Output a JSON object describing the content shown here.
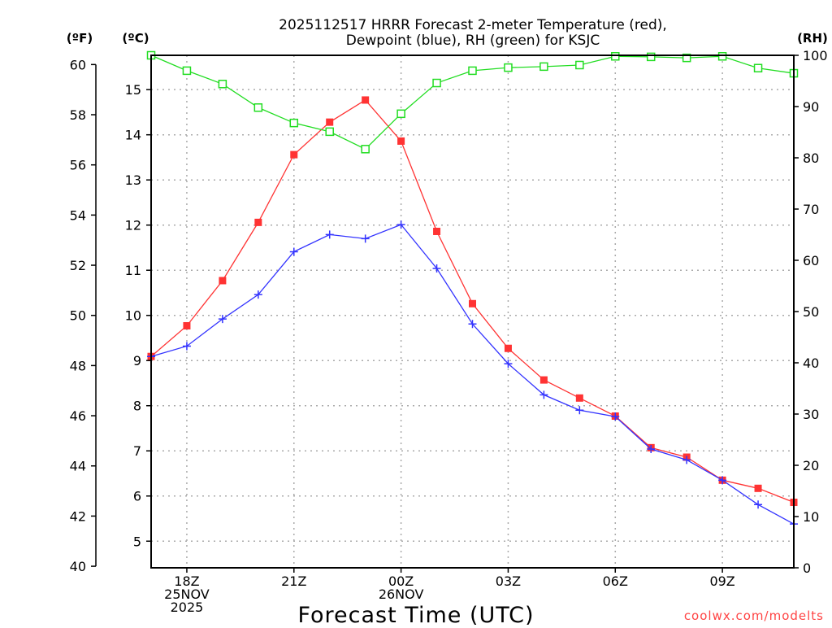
{
  "chart_data": {
    "type": "line",
    "title_line1": "2025112517 HRRR Forecast 2-meter Temperature (red),",
    "title_line2": "Dewpoint (blue), RH (green) for KSJC",
    "xlabel": "Forecast Time (UTC)",
    "left_axis_f_label": "(ºF)",
    "left_axis_c_label": "(ºC)",
    "right_axis_label": "(RH)",
    "credit": "coolwx.com/modelts",
    "x_hours": [
      "17Z",
      "18Z",
      "19Z",
      "20Z",
      "21Z",
      "22Z",
      "23Z",
      "00Z",
      "01Z",
      "02Z",
      "03Z",
      "04Z",
      "05Z",
      "06Z",
      "07Z",
      "08Z",
      "09Z",
      "10Z",
      "11Z"
    ],
    "x_ticks": [
      {
        "hour_index": 1,
        "lines": [
          "18Z",
          "25NOV",
          "2025"
        ]
      },
      {
        "hour_index": 4,
        "lines": [
          "21Z"
        ]
      },
      {
        "hour_index": 7,
        "lines": [
          "00Z",
          "26NOV"
        ]
      },
      {
        "hour_index": 10,
        "lines": [
          "03Z"
        ]
      },
      {
        "hour_index": 13,
        "lines": [
          "06Z"
        ]
      },
      {
        "hour_index": 16,
        "lines": [
          "09Z"
        ]
      }
    ],
    "celsius_range": [
      4.41,
      15.76
    ],
    "celsius_ticks": [
      "5",
      "6",
      "7",
      "8",
      "9",
      "10",
      "11",
      "12",
      "13",
      "14",
      "15"
    ],
    "fahrenheit_ticks": [
      "40",
      "42",
      "44",
      "46",
      "48",
      "50",
      "52",
      "54",
      "56",
      "58",
      "60"
    ],
    "rh_range": [
      0,
      100
    ],
    "rh_ticks": [
      "0",
      "10",
      "20",
      "30",
      "40",
      "50",
      "60",
      "70",
      "80",
      "90",
      "100"
    ],
    "grid": true,
    "series": [
      {
        "name": "Temperature (°C)",
        "color": "#ff3333",
        "marker": "filled-square",
        "axis": "celsius",
        "values": [
          9.09,
          9.77,
          10.77,
          12.06,
          13.56,
          14.28,
          14.77,
          13.86,
          11.86,
          10.26,
          9.27,
          8.57,
          8.17,
          7.77,
          7.07,
          6.86,
          6.35,
          6.17,
          5.86
        ]
      },
      {
        "name": "Dewpoint (°C)",
        "color": "#3333ff",
        "marker": "plus",
        "axis": "celsius",
        "values": [
          9.09,
          9.32,
          9.92,
          10.46,
          11.41,
          11.79,
          11.7,
          12.01,
          11.04,
          9.81,
          8.93,
          8.24,
          7.9,
          7.76,
          7.04,
          6.8,
          6.35,
          5.81,
          5.38
        ]
      },
      {
        "name": "RH (%)",
        "color": "#22dd22",
        "marker": "open-square",
        "axis": "rh",
        "values": [
          100,
          97,
          94.4,
          89.8,
          86.8,
          85.1,
          81.7,
          88.6,
          94.6,
          97,
          97.6,
          97.8,
          98.1,
          99.8,
          99.7,
          99.5,
          99.8,
          97.5,
          96.5
        ]
      }
    ]
  }
}
